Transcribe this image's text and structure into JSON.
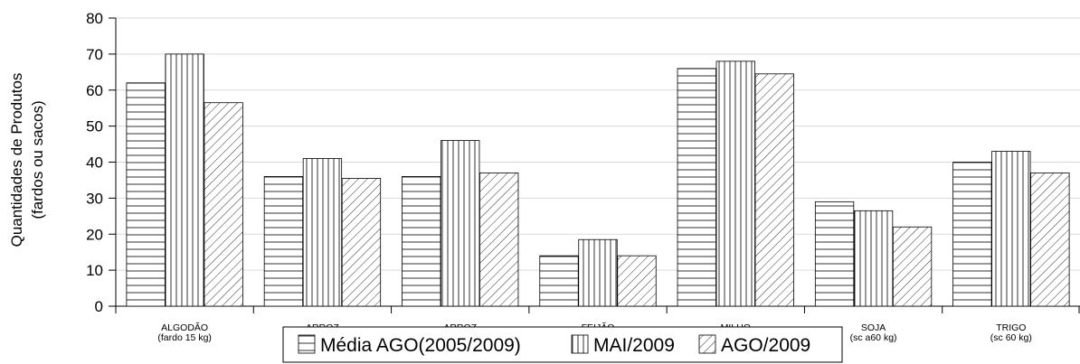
{
  "chart_data": {
    "type": "bar",
    "ylabel": "Quantidades de Produtos",
    "ylabel_line2": "(fardos ou sacos)",
    "ylim": [
      0,
      80
    ],
    "yticks": [
      0,
      10,
      20,
      30,
      40,
      50,
      60,
      70,
      80
    ],
    "grid": true,
    "legend_position": "bottom-center",
    "categories": [
      {
        "line1": "ALGODÃO",
        "line2": "(fardo 15 kg)"
      },
      {
        "line1": "ARROZ",
        "line2": ""
      },
      {
        "line1": "ARROZ",
        "line2": ""
      },
      {
        "line1": "FEIJÃO",
        "line2": ""
      },
      {
        "line1": "MILHO",
        "line2": ""
      },
      {
        "line1": "SOJA",
        "line2": "(sc a60 kg)"
      },
      {
        "line1": "TRIGO",
        "line2": "(sc 60 kg)"
      }
    ],
    "series": [
      {
        "name": "Média AGO(2005/2009)",
        "pattern": "horizontal",
        "values": [
          62,
          36,
          36,
          14,
          66,
          29,
          40
        ]
      },
      {
        "name": "MAI/2009",
        "pattern": "vertical",
        "values": [
          70,
          41,
          46,
          18.5,
          68,
          26.5,
          43
        ]
      },
      {
        "name": "AGO/2009",
        "pattern": "diagonal",
        "values": [
          56.5,
          35.5,
          37,
          14,
          64.5,
          22,
          37
        ]
      }
    ],
    "colors": {
      "stroke": "#000000",
      "grid": "#d9d9d9",
      "background": "#ffffff"
    }
  }
}
